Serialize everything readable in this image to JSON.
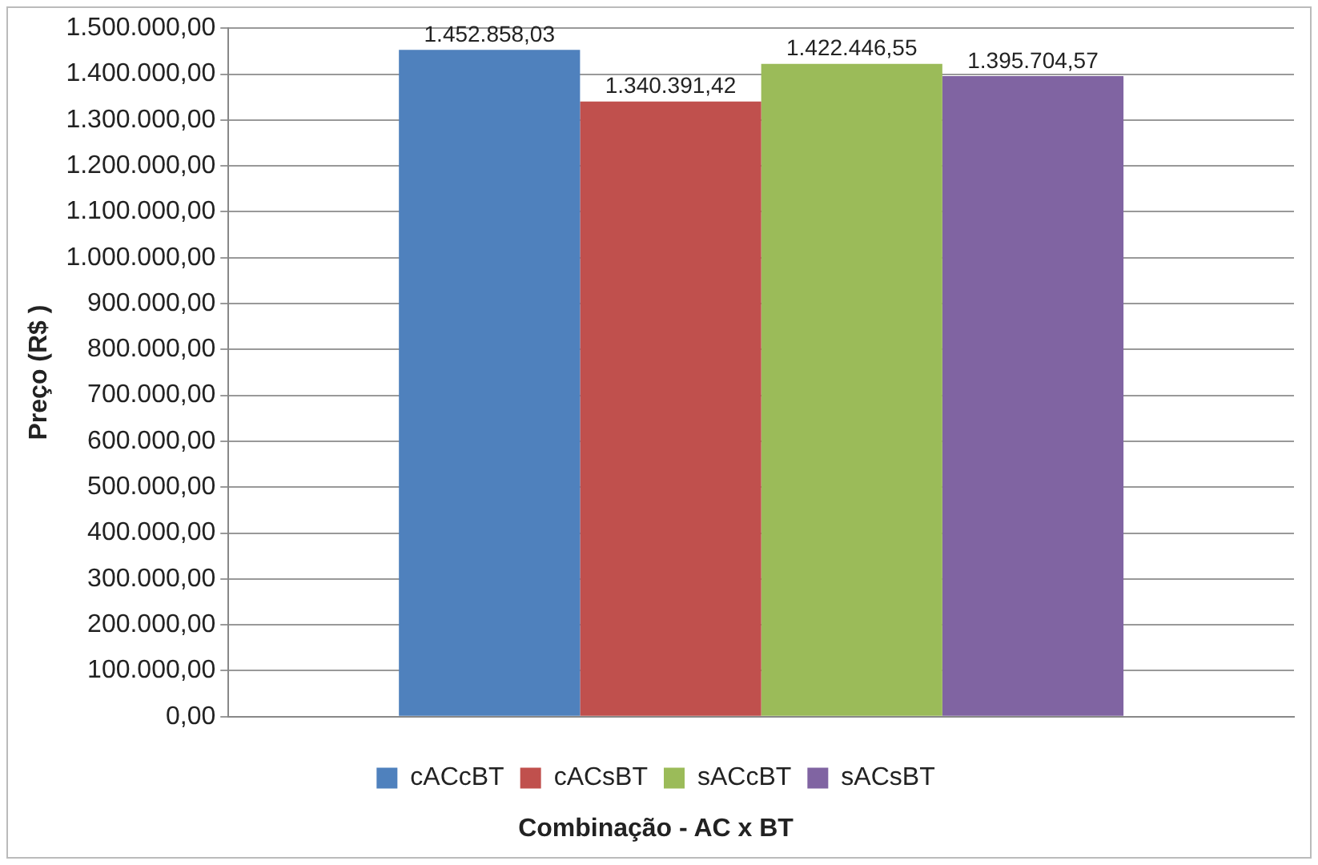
{
  "chart_data": {
    "type": "bar",
    "ylabel": "Preço (R$ )",
    "xlabel": "Combinação - AC x BT",
    "categories": [
      null
    ],
    "series": [
      {
        "name": "cACcBT",
        "color": "#4f81bd",
        "values": [
          1452858.03
        ],
        "value_labels": [
          "1.452.858,03"
        ]
      },
      {
        "name": "cACsBT",
        "color": "#c0504d",
        "values": [
          1340391.42
        ],
        "value_labels": [
          "1.340.391,42"
        ]
      },
      {
        "name": "sACcBT",
        "color": "#9bbb59",
        "values": [
          1422446.55
        ],
        "value_labels": [
          "1.422.446,55"
        ]
      },
      {
        "name": "sACsBT",
        "color": "#8064a2",
        "values": [
          1395704.57
        ],
        "value_labels": [
          "1.395.704,57"
        ]
      }
    ],
    "ylim": [
      0,
      1500000
    ],
    "yticks": [
      {
        "value": 0,
        "label": "0,00"
      },
      {
        "value": 100000,
        "label": "100.000,00"
      },
      {
        "value": 200000,
        "label": "200.000,00"
      },
      {
        "value": 300000,
        "label": "300.000,00"
      },
      {
        "value": 400000,
        "label": "400.000,00"
      },
      {
        "value": 500000,
        "label": "500.000,00"
      },
      {
        "value": 600000,
        "label": "600.000,00"
      },
      {
        "value": 700000,
        "label": "700.000,00"
      },
      {
        "value": 800000,
        "label": "800.000,00"
      },
      {
        "value": 900000,
        "label": "900.000,00"
      },
      {
        "value": 1000000,
        "label": "1.000.000,00"
      },
      {
        "value": 1100000,
        "label": "1.100.000,00"
      },
      {
        "value": 1200000,
        "label": "1.200.000,00"
      },
      {
        "value": 1300000,
        "label": "1.300.000,00"
      },
      {
        "value": 1400000,
        "label": "1.400.000,00"
      },
      {
        "value": 1500000,
        "label": "1.500.000,00"
      }
    ],
    "grid": "y",
    "legend": "bottom"
  }
}
